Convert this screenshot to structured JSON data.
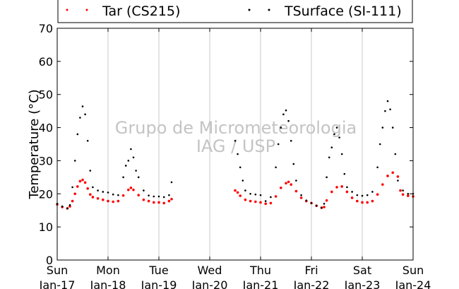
{
  "chart_data": {
    "type": "scatter",
    "ylabel": "Temperature (°C)",
    "ylim": [
      0,
      70
    ],
    "yticks": [
      0,
      10,
      20,
      30,
      40,
      50,
      60,
      70
    ],
    "xlim": [
      "2016-01-17",
      "2016-01-24"
    ],
    "xtick_labels": [
      {
        "day": "Sun",
        "date": "Jan-17"
      },
      {
        "day": "Mon",
        "date": "Jan-18"
      },
      {
        "day": "Tue",
        "date": "Jan-19"
      },
      {
        "day": "Wed",
        "date": "Jan-20"
      },
      {
        "day": "Thu",
        "date": "Jan-21"
      },
      {
        "day": "Fri",
        "date": "Jan-22"
      },
      {
        "day": "Sat",
        "date": "Jan-23"
      },
      {
        "day": "Sun",
        "date": "Jan-24"
      }
    ],
    "grid": "vertical",
    "legend_position": "top",
    "watermark": [
      "Grupo de Micrometeorologia",
      "IAG / USP"
    ],
    "series": [
      {
        "name": "Tar (CS215)",
        "color": "#ff0000",
        "x_unit": "days since Jan-17 00:00",
        "points": [
          [
            0.0,
            16.8
          ],
          [
            0.1,
            16.0
          ],
          [
            0.2,
            15.6
          ],
          [
            0.25,
            16.2
          ],
          [
            0.3,
            17.8
          ],
          [
            0.35,
            20.0
          ],
          [
            0.4,
            22.2
          ],
          [
            0.45,
            23.8
          ],
          [
            0.5,
            24.2
          ],
          [
            0.55,
            23.4
          ],
          [
            0.6,
            21.6
          ],
          [
            0.65,
            19.8
          ],
          [
            0.7,
            19.0
          ],
          [
            0.8,
            18.6
          ],
          [
            0.9,
            18.2
          ],
          [
            1.0,
            17.8
          ],
          [
            1.1,
            17.6
          ],
          [
            1.2,
            17.8
          ],
          [
            1.3,
            19.5
          ],
          [
            1.4,
            21.2
          ],
          [
            1.45,
            21.8
          ],
          [
            1.5,
            21.2
          ],
          [
            1.6,
            19.6
          ],
          [
            1.7,
            18.2
          ],
          [
            1.8,
            17.8
          ],
          [
            1.9,
            17.4
          ],
          [
            2.0,
            17.4
          ],
          [
            2.1,
            17.2
          ],
          [
            2.2,
            17.8
          ],
          [
            2.25,
            18.4
          ],
          [
            3.5,
            21.0
          ],
          [
            3.55,
            20.4
          ],
          [
            3.6,
            19.4
          ],
          [
            3.7,
            18.2
          ],
          [
            3.8,
            17.8
          ],
          [
            3.9,
            17.6
          ],
          [
            4.0,
            17.4
          ],
          [
            4.1,
            17.0
          ],
          [
            4.2,
            17.2
          ],
          [
            4.3,
            19.2
          ],
          [
            4.4,
            21.8
          ],
          [
            4.5,
            23.2
          ],
          [
            4.55,
            23.6
          ],
          [
            4.6,
            22.8
          ],
          [
            4.7,
            20.8
          ],
          [
            4.8,
            18.8
          ],
          [
            4.9,
            17.8
          ],
          [
            5.0,
            17.2
          ],
          [
            5.1,
            16.4
          ],
          [
            5.2,
            15.8
          ],
          [
            5.25,
            16.0
          ],
          [
            5.3,
            18.0
          ],
          [
            5.4,
            20.6
          ],
          [
            5.5,
            22.0
          ],
          [
            5.6,
            22.2
          ],
          [
            5.7,
            20.6
          ],
          [
            5.8,
            18.8
          ],
          [
            5.9,
            17.8
          ],
          [
            6.0,
            17.4
          ],
          [
            6.1,
            17.4
          ],
          [
            6.2,
            17.8
          ],
          [
            6.3,
            19.8
          ],
          [
            6.4,
            22.8
          ],
          [
            6.5,
            25.4
          ],
          [
            6.6,
            26.4
          ],
          [
            6.7,
            25.2
          ],
          [
            6.75,
            21.0
          ],
          [
            6.8,
            19.8
          ],
          [
            6.9,
            19.4
          ],
          [
            7.0,
            19.2
          ]
        ]
      },
      {
        "name": "TSurface (SI-111)",
        "color": "#000000",
        "x_unit": "days since Jan-17 00:00",
        "points": [
          [
            0.0,
            17.0
          ],
          [
            0.1,
            16.2
          ],
          [
            0.2,
            15.6
          ],
          [
            0.25,
            16.6
          ],
          [
            0.3,
            22.0
          ],
          [
            0.35,
            30.0
          ],
          [
            0.4,
            38.0
          ],
          [
            0.45,
            43.0
          ],
          [
            0.5,
            46.4
          ],
          [
            0.55,
            44.0
          ],
          [
            0.6,
            36.0
          ],
          [
            0.65,
            27.0
          ],
          [
            0.7,
            22.0
          ],
          [
            0.8,
            21.0
          ],
          [
            0.9,
            20.6
          ],
          [
            1.0,
            20.4
          ],
          [
            1.1,
            19.8
          ],
          [
            1.2,
            19.6
          ],
          [
            1.3,
            25.0
          ],
          [
            1.35,
            28.5
          ],
          [
            1.4,
            30.0
          ],
          [
            1.45,
            33.5
          ],
          [
            1.5,
            31.0
          ],
          [
            1.55,
            27.0
          ],
          [
            1.6,
            25.0
          ],
          [
            1.7,
            21.0
          ],
          [
            1.8,
            19.5
          ],
          [
            1.9,
            19.2
          ],
          [
            2.0,
            19.2
          ],
          [
            2.1,
            19.0
          ],
          [
            2.2,
            19.6
          ],
          [
            2.25,
            23.5
          ],
          [
            3.5,
            36.0
          ],
          [
            3.55,
            32.0
          ],
          [
            3.6,
            28.0
          ],
          [
            3.65,
            24.0
          ],
          [
            3.7,
            21.0
          ],
          [
            3.8,
            20.0
          ],
          [
            3.9,
            19.8
          ],
          [
            4.0,
            19.6
          ],
          [
            4.1,
            17.8
          ],
          [
            4.2,
            19.0
          ],
          [
            4.3,
            28.0
          ],
          [
            4.35,
            35.0
          ],
          [
            4.4,
            40.0
          ],
          [
            4.45,
            44.0
          ],
          [
            4.5,
            45.2
          ],
          [
            4.55,
            42.0
          ],
          [
            4.6,
            36.0
          ],
          [
            4.65,
            29.0
          ],
          [
            4.7,
            24.0
          ],
          [
            4.8,
            19.6
          ],
          [
            4.9,
            18.0
          ],
          [
            5.0,
            17.2
          ],
          [
            5.1,
            16.4
          ],
          [
            5.2,
            15.8
          ],
          [
            5.25,
            17.0
          ],
          [
            5.3,
            25.0
          ],
          [
            5.35,
            31.0
          ],
          [
            5.4,
            34.0
          ],
          [
            5.45,
            38.0
          ],
          [
            5.5,
            40.0
          ],
          [
            5.55,
            37.0
          ],
          [
            5.6,
            32.0
          ],
          [
            5.65,
            26.0
          ],
          [
            5.7,
            22.0
          ],
          [
            5.8,
            20.6
          ],
          [
            5.9,
            19.6
          ],
          [
            6.0,
            19.4
          ],
          [
            6.1,
            19.6
          ],
          [
            6.2,
            20.6
          ],
          [
            6.3,
            28.0
          ],
          [
            6.35,
            35.0
          ],
          [
            6.4,
            40.0
          ],
          [
            6.45,
            45.0
          ],
          [
            6.5,
            48.0
          ],
          [
            6.55,
            45.5
          ],
          [
            6.6,
            40.0
          ],
          [
            6.65,
            32.0
          ],
          [
            6.7,
            24.0
          ],
          [
            6.8,
            21.0
          ],
          [
            6.9,
            20.0
          ],
          [
            7.0,
            20.0
          ]
        ]
      }
    ]
  }
}
